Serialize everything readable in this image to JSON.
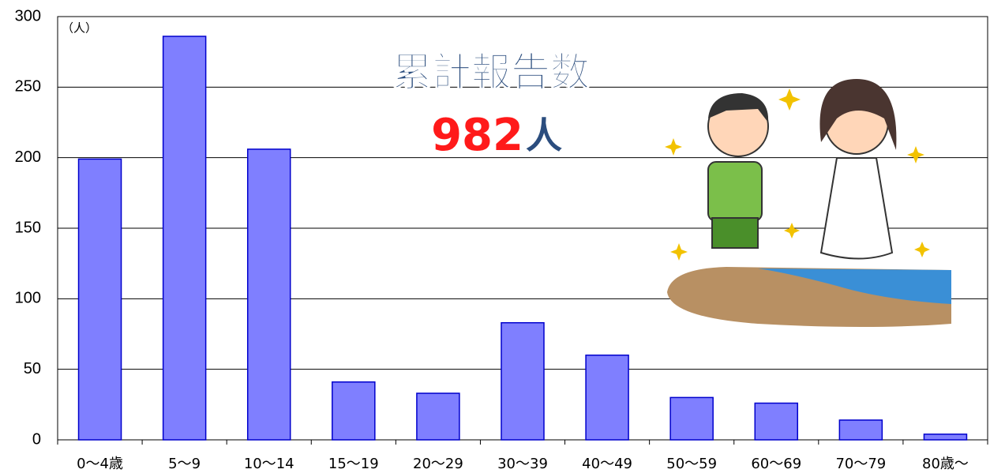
{
  "chart_data": {
    "type": "bar",
    "unit_label": "（人）",
    "title": "累計報告数",
    "total_count": 982,
    "total_unit": "人",
    "categories": [
      "0～4歳",
      "5～9",
      "10～14",
      "15～19",
      "20～29",
      "30～39",
      "40～49",
      "50～59",
      "60～69",
      "70～79",
      "80歳～"
    ],
    "values": [
      199,
      286,
      206,
      41,
      33,
      83,
      60,
      30,
      26,
      14,
      4
    ],
    "color": "#7f7fff",
    "edge_color": "#0000cc",
    "ylim": [
      0,
      300
    ],
    "yticks": [
      0,
      50,
      100,
      150,
      200,
      250,
      300
    ],
    "grid": true
  }
}
